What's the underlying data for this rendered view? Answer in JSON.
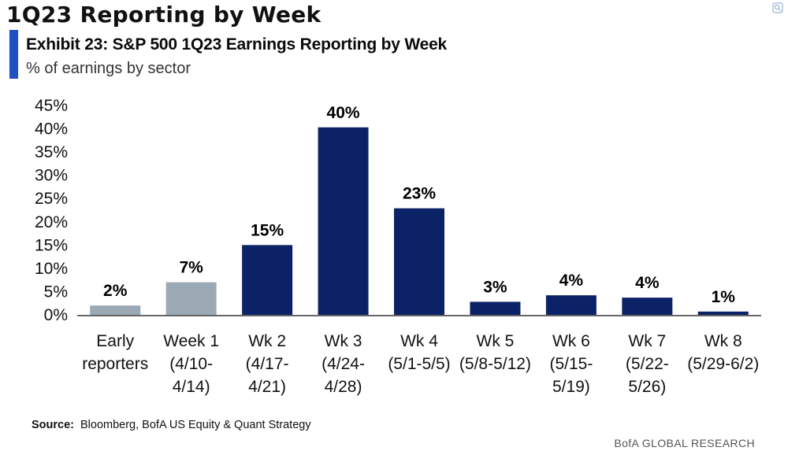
{
  "header": {
    "page_title": "1Q23 Reporting by Week",
    "exhibit_title": "Exhibit 23: S&P 500 1Q23 Earnings Reporting by Week",
    "exhibit_subtitle": "% of earnings by sector"
  },
  "footer": {
    "source_label": "Source:",
    "source_text": "Bloomberg, BofA US Equity & Quant Strategy",
    "brand": "BofA GLOBAL RESEARCH"
  },
  "icons": {
    "corner": "expand-icon"
  },
  "colors": {
    "accent": "#1f4fc4",
    "early_bar": "#9ba9b5",
    "main_bar": "#0c2266",
    "axis": "#333333"
  },
  "chart_data": {
    "type": "bar",
    "title": "Exhibit 23: S&P 500 1Q23 Earnings Reporting by Week",
    "subtitle": "% of earnings by sector",
    "categories": [
      [
        "Early",
        "reporters"
      ],
      [
        "Week 1",
        "(4/10-",
        "4/14)"
      ],
      [
        "Wk 2",
        "(4/17-",
        "4/21)"
      ],
      [
        "Wk 3",
        "(4/24-",
        "4/28)"
      ],
      [
        "Wk 4",
        "(5/1-5/5)"
      ],
      [
        "Wk 5",
        "(5/8-5/12)"
      ],
      [
        "Wk 6",
        "(5/15-",
        "5/19)"
      ],
      [
        "Wk 7",
        "(5/22-",
        "5/26)"
      ],
      [
        "Wk 8",
        "(5/29-6/2)"
      ]
    ],
    "values": [
      2.0,
      7.0,
      15.0,
      40.3,
      22.9,
      2.8,
      4.2,
      3.7,
      0.7
    ],
    "data_labels": [
      "2%",
      "7%",
      "15%",
      "40%",
      "23%",
      "3%",
      "4%",
      "4%",
      "1%"
    ],
    "bar_color_groups": [
      "early",
      "early",
      "main",
      "main",
      "main",
      "main",
      "main",
      "main",
      "main"
    ],
    "ylim": [
      0,
      45
    ],
    "yticks": [
      0,
      5,
      10,
      15,
      20,
      25,
      30,
      35,
      40,
      45
    ],
    "ytick_labels": [
      "0%",
      "5%",
      "10%",
      "15%",
      "20%",
      "25%",
      "30%",
      "35%",
      "40%",
      "45%"
    ],
    "grid": false,
    "xlabel": "",
    "ylabel": ""
  }
}
